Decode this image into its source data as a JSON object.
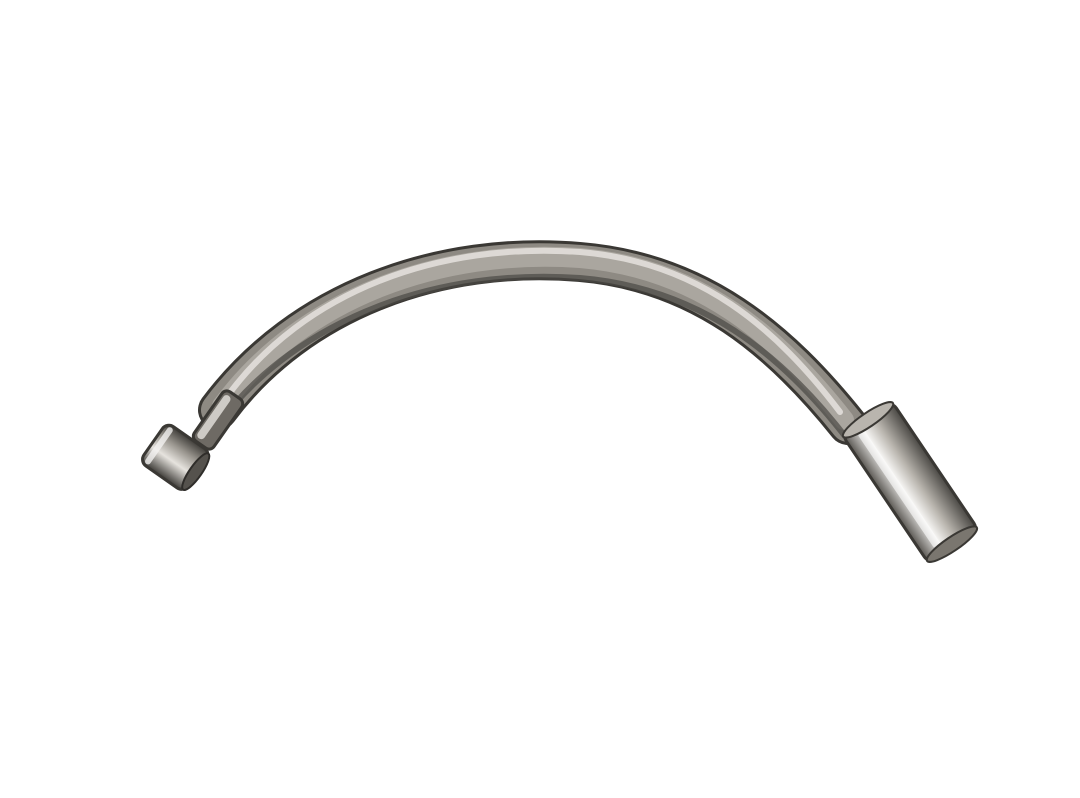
{
  "image": {
    "subject": "curved-metal-brake-noodle",
    "background_color": "#ffffff",
    "colors": {
      "metal_dark": "#4a4844",
      "metal_mid": "#8e8a83",
      "metal_light": "#d9d6d0",
      "highlight": "#f4f3f1",
      "shadow": "#2f2d2a"
    }
  }
}
